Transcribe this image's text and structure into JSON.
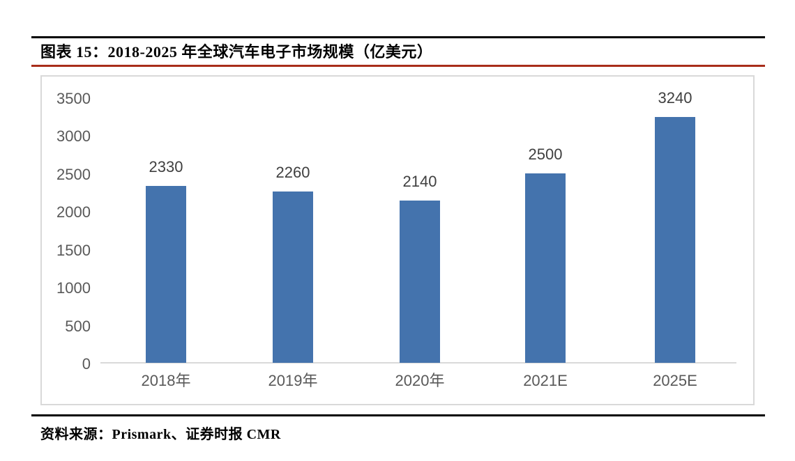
{
  "header": {
    "title": "图表 15：2018-2025 年全球汽车电子市场规模（亿美元）"
  },
  "footer": {
    "source": "资料来源：Prismark、证券时报 CMR"
  },
  "colors": {
    "bar": "#4473ad",
    "title_underline": "#a82d1a",
    "top_rule": "#000000",
    "bottom_rule": "#000000",
    "value_label": "#3f3f3f",
    "tick_label": "#595959",
    "axis_line": "#d9d9d9",
    "chart_border": "#d9d9d9"
  },
  "chart_data": {
    "type": "bar",
    "title": "图表 15：2018-2025 年全球汽车电子市场规模（亿美元）",
    "categories": [
      "2018年",
      "2019年",
      "2020年",
      "2021E",
      "2025E"
    ],
    "values": [
      2330,
      2260,
      2140,
      2500,
      3240
    ],
    "data_labels": [
      "2330",
      "2260",
      "2140",
      "2500",
      "3240"
    ],
    "xlabel": "",
    "ylabel": "",
    "unit": "亿美元",
    "ylim": [
      0,
      3500
    ],
    "yticks": [
      0,
      500,
      1000,
      1500,
      2000,
      2500,
      3000,
      3500
    ],
    "grid": false,
    "legend_position": "none",
    "bar_color": "#4473ad",
    "source": "资料来源：Prismark、证券时报 CMR"
  }
}
